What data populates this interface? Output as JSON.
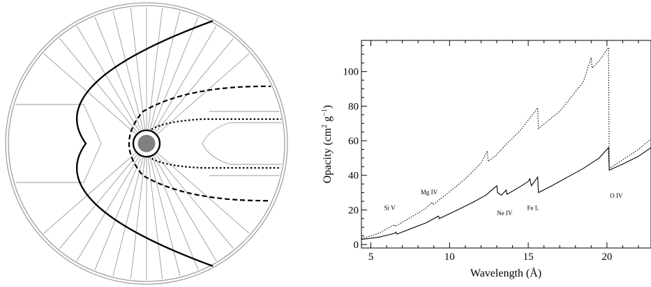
{
  "left_panel": {
    "description_shapes": [
      "outer-circle",
      "stream-lines",
      "bow-shock",
      "wake-boundaries",
      "central-star"
    ]
  },
  "chart_data": {
    "type": "line",
    "title": "",
    "xlabel": "Wavelength (Å)",
    "ylabel_main": "Opacity (cm",
    "ylabel_sup1": "2",
    "ylabel_mid": " g",
    "ylabel_sup2": "−1",
    "ylabel_end": ")",
    "xlim": [
      4.4,
      22.8
    ],
    "ylim": [
      -2,
      118
    ],
    "xticks": [
      5,
      10,
      15,
      20
    ],
    "yticks": [
      0,
      20,
      40,
      60,
      80,
      100
    ],
    "grid": false,
    "series": [
      {
        "style": "solid",
        "x": [
          4.4,
          5.0,
          5.5,
          6.0,
          6.5,
          6.6,
          6.65,
          7.5,
          8.5,
          9.3,
          9.35,
          10.5,
          11.5,
          12.3,
          13.0,
          13.05,
          13.3,
          13.6,
          13.65,
          14.5,
          15.0,
          15.1,
          15.2,
          15.6,
          15.65,
          16.5,
          17.5,
          18.5,
          19.5,
          20.1,
          20.15,
          21.0,
          22.0,
          22.8
        ],
        "y": [
          3,
          3.6,
          4.3,
          5.3,
          6.5,
          7.2,
          6.0,
          9.0,
          12.5,
          16.5,
          15.0,
          20.0,
          24.5,
          28.5,
          34.0,
          30.0,
          28.5,
          31.5,
          29.0,
          33.5,
          36.5,
          38.0,
          34.0,
          39.0,
          30.0,
          34.0,
          39.0,
          44.0,
          50.0,
          56.0,
          43.0,
          46.5,
          51.0,
          56.0
        ]
      },
      {
        "style": "dotted",
        "x": [
          4.4,
          5.0,
          5.5,
          6.0,
          6.4,
          6.5,
          6.55,
          7.5,
          8.5,
          8.9,
          8.95,
          10.0,
          11.0,
          12.0,
          12.4,
          12.45,
          13.0,
          13.5,
          14.5,
          15.6,
          15.65,
          17.0,
          18.5,
          19.0,
          19.05,
          19.5,
          20.1,
          20.15,
          21.0,
          22.0,
          22.8
        ],
        "y": [
          3.5,
          5.0,
          6.5,
          9.0,
          11.0,
          11.5,
          10.5,
          15.5,
          21.0,
          24.5,
          23.0,
          30.5,
          38.0,
          47.0,
          54.0,
          48.0,
          52.0,
          57.0,
          66.0,
          79.0,
          67.0,
          77.0,
          94.0,
          108.0,
          102.0,
          106.0,
          114.0,
          44.0,
          49.0,
          55.0,
          61.0
        ]
      }
    ],
    "annotations": [
      {
        "text": "Si V",
        "x": 6.2,
        "y": 20
      },
      {
        "text": "Mg IV",
        "x": 8.7,
        "y": 29
      },
      {
        "text": "Ne IV",
        "x": 13.5,
        "y": 17
      },
      {
        "text": "Fe L",
        "x": 15.3,
        "y": 20
      },
      {
        "text": "O IV",
        "x": 20.6,
        "y": 27
      }
    ]
  }
}
